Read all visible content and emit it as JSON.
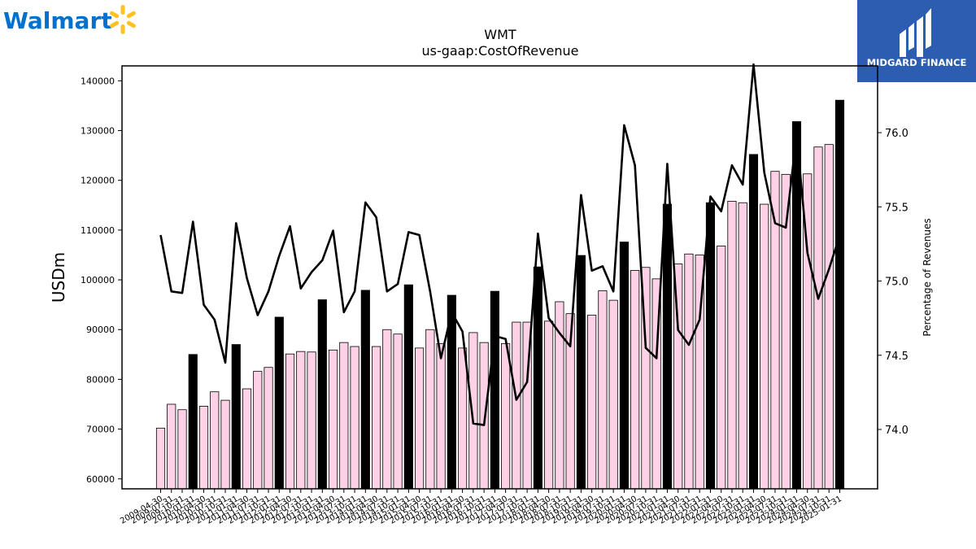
{
  "branding": {
    "walmart_logo": "Walmart",
    "midgard_logo": "MIDGARD FINANCE"
  },
  "colors": {
    "bar_normal": "#ffd1e6",
    "bar_highlight": "#000000",
    "line": "#000000",
    "walmart_blue": "#0071ce",
    "walmart_spark": "#ffc220",
    "midgard_bg": "#2d5db0"
  },
  "chart_data": {
    "type": "bar",
    "title": "WMT",
    "subtitle": "us-gaap:CostOfRevenue",
    "ylabel": "USDm",
    "y2label": "Percentage of Revenues",
    "ylim": [
      58000,
      143000
    ],
    "y2lim": [
      73.6,
      76.45
    ],
    "yticks": [
      60000,
      70000,
      80000,
      90000,
      100000,
      110000,
      120000,
      130000,
      140000
    ],
    "y2ticks": [
      74.0,
      74.5,
      75.0,
      75.5,
      76.0
    ],
    "categories": [
      "2009-04-30",
      "2009-07-31",
      "2009-10-31",
      "2010-01-31",
      "2010-04-30",
      "2010-07-31",
      "2010-10-31",
      "2011-01-31",
      "2011-04-30",
      "2011-07-31",
      "2011-10-31",
      "2012-01-31",
      "2012-04-30",
      "2012-07-31",
      "2012-10-31",
      "2013-01-31",
      "2013-04-30",
      "2013-07-31",
      "2013-10-31",
      "2014-01-31",
      "2014-04-30",
      "2014-07-31",
      "2014-10-31",
      "2015-01-31",
      "2015-04-30",
      "2015-07-31",
      "2015-10-31",
      "2016-01-31",
      "2016-04-30",
      "2016-07-31",
      "2016-10-31",
      "2017-01-31",
      "2017-04-30",
      "2017-07-31",
      "2017-10-31",
      "2018-01-31",
      "2018-04-30",
      "2018-07-31",
      "2018-10-31",
      "2019-01-31",
      "2019-04-30",
      "2019-07-31",
      "2019-10-31",
      "2020-01-31",
      "2020-04-30",
      "2020-07-31",
      "2020-10-31",
      "2021-01-31",
      "2021-04-30",
      "2021-07-31",
      "2021-10-31",
      "2022-01-31",
      "2022-04-30",
      "2022-07-31",
      "2022-10-31",
      "2023-01-31",
      "2023-04-30",
      "2023-07-31",
      "2023-10-31",
      "2024-01-31",
      "2024-04-30",
      "2024-07-31",
      "2024-10-31",
      "2025-01-31"
    ],
    "tick_labels": [
      "2009-04-30",
      "2009-07-31",
      "2009-10-31",
      "2010-01-31",
      "2010-04-30",
      "2010-07-31",
      "2010-10-31",
      "2011-01-31",
      "2011-04-30",
      "2011-07-31",
      "2011-10-31",
      "2012-01-31",
      "2012-04-30",
      "2012-07-31",
      "2012-10-31",
      "2013-01-31",
      "2013-04-30",
      "2013-07-31",
      "2013-10-31",
      "2014-01-31",
      "2014-04-30",
      "2014-07-31",
      "2014-10-31",
      "2015-01-31",
      "2015-04-30",
      "2015-07-31",
      "2015-10-31",
      "2016-01-31",
      "2016-04-30",
      "2016-07-31",
      "2016-10-31",
      "2017-01-31",
      "2017-04-30",
      "2017-07-31",
      "2017-10-31",
      "2018-01-31",
      "2018-04-30",
      "2018-07-31",
      "2018-10-31",
      "2019-01-31",
      "2019-04-30",
      "2019-07-31",
      "2019-10-31",
      "2020-01-31",
      "2020-04-30",
      "2020-07-31",
      "2020-10-31",
      "2021-01-31",
      "2021-04-30",
      "2021-07-31",
      "2021-10-31",
      "2022-01-31",
      "2022-04-30",
      "2022-07-31",
      "2022-10-31",
      "2023-01-31",
      "2023-04-30",
      "2023-07-31",
      "2023-10-31",
      "2024-01-31",
      "2024-04-30",
      "2024-07-31",
      "2024-10-31",
      "2025-01-31"
    ],
    "values": [
      70200,
      75000,
      73900,
      85000,
      74600,
      77500,
      75800,
      87000,
      78100,
      81600,
      82400,
      92500,
      85100,
      85600,
      85500,
      96000,
      85900,
      87400,
      86600,
      97900,
      86600,
      90000,
      89100,
      99000,
      86300,
      90000,
      87200,
      96900,
      86300,
      89400,
      87400,
      97700,
      87200,
      91500,
      91500,
      102600,
      91700,
      95600,
      93200,
      104900,
      92900,
      97800,
      95900,
      107600,
      101900,
      102500,
      100200,
      115200,
      103200,
      105200,
      105000,
      115500,
      106800,
      115800,
      115500,
      125200,
      115200,
      121800,
      121200,
      131800,
      121300,
      126700,
      127200,
      136100
    ],
    "highlight": [
      false,
      false,
      false,
      true,
      false,
      false,
      false,
      true,
      false,
      false,
      false,
      true,
      false,
      false,
      false,
      true,
      false,
      false,
      false,
      true,
      false,
      false,
      false,
      true,
      false,
      false,
      false,
      true,
      false,
      false,
      false,
      true,
      false,
      false,
      false,
      true,
      false,
      false,
      false,
      true,
      false,
      false,
      false,
      true,
      false,
      false,
      false,
      true,
      false,
      false,
      false,
      true,
      false,
      false,
      false,
      true,
      false,
      false,
      false,
      true,
      false,
      false,
      false,
      true
    ],
    "percentages": [
      75.31,
      74.93,
      74.92,
      75.4,
      74.84,
      74.74,
      74.45,
      75.39,
      75.02,
      74.77,
      74.93,
      75.17,
      75.37,
      74.95,
      75.06,
      75.14,
      75.34,
      74.79,
      74.93,
      75.53,
      75.43,
      74.93,
      74.98,
      75.33,
      75.31,
      74.93,
      74.48,
      74.79,
      74.66,
      74.04,
      74.03,
      74.63,
      74.61,
      74.2,
      74.32,
      75.32,
      74.75,
      74.65,
      74.56,
      75.58,
      75.07,
      75.1,
      74.93,
      76.05,
      75.78,
      74.55,
      74.48,
      75.79,
      74.67,
      74.57,
      74.74,
      75.57,
      75.47,
      75.78,
      75.65,
      76.46,
      75.73,
      75.39,
      75.36,
      75.99,
      75.19,
      74.88,
      75.08,
      75.31
    ],
    "grid": false,
    "legend": "none"
  }
}
